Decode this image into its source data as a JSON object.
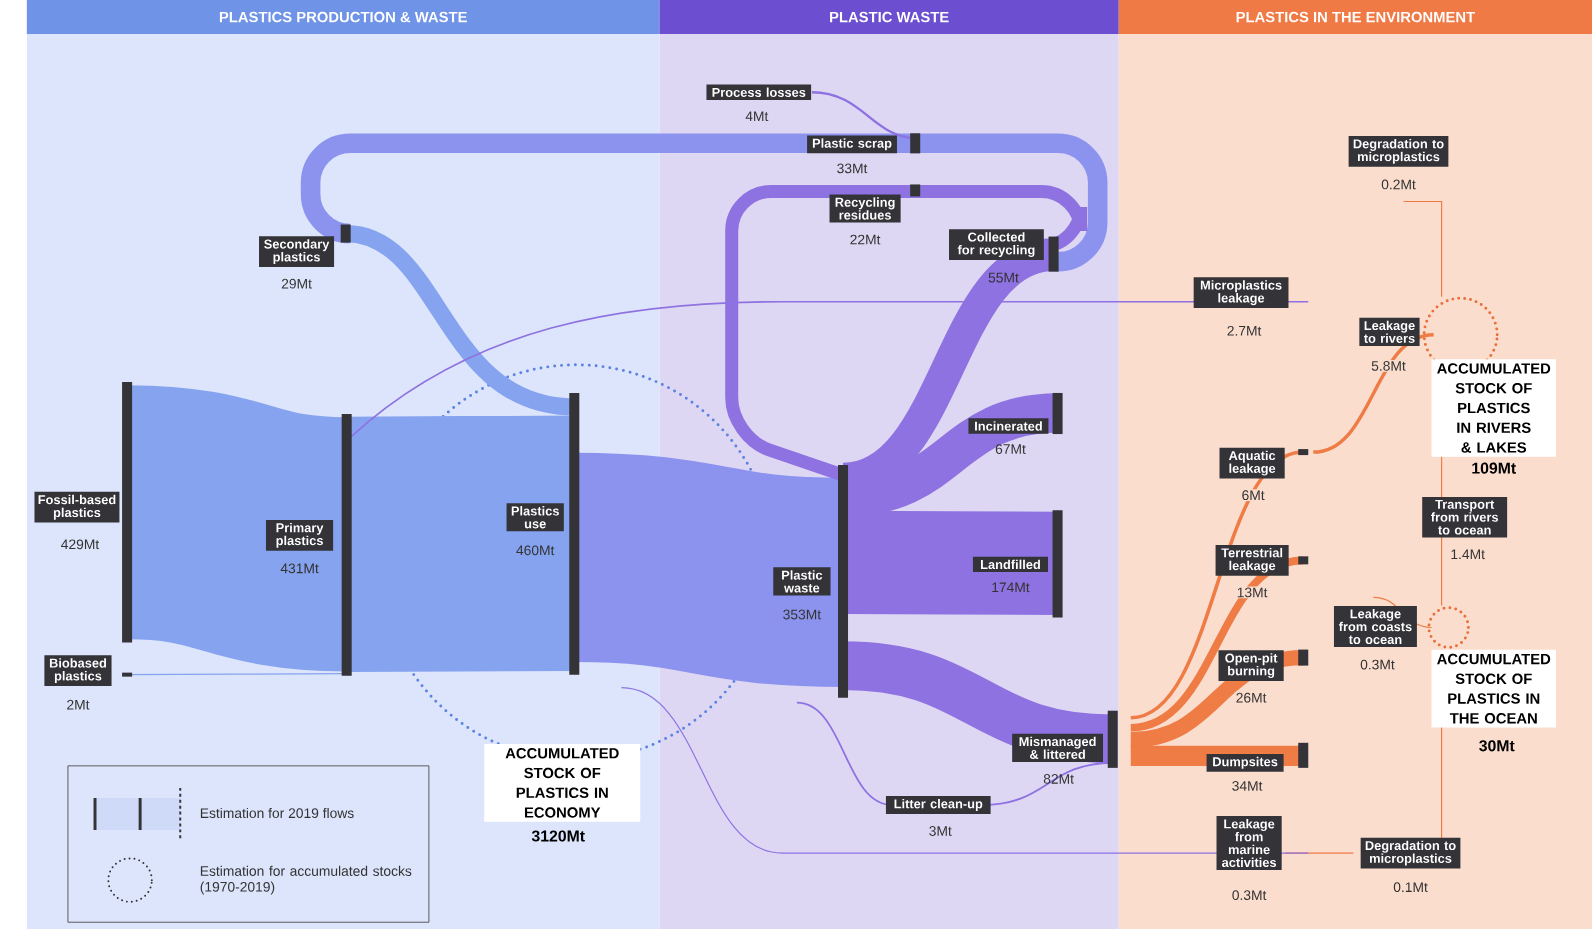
{
  "chart_data": {
    "type": "other",
    "categories": [
      "Fossil-based plastics",
      "Biobased plastics",
      "Primary plastics",
      "Secondary plastics",
      "Plastics use",
      "Process losses",
      "Plastic scrap",
      "Recycling residues",
      "Collected for recycling",
      "Plastic waste",
      "Incinerated",
      "Landfilled",
      "Mismanaged & littered",
      "Litter clean-up",
      "Microplastics leakage",
      "Aquatic leakage",
      "Terrestrial leakage",
      "Open-pit burning",
      "Dumpsites",
      "Leakage from marine activities",
      "Degradation to microplastics",
      "Leakage to rivers",
      "Transport from rivers to ocean",
      "Leakage from coasts to ocean",
      "Degradation to microplastics",
      "ACCUMULATED STOCK OF PLASTICS IN RIVERS & LAKES",
      "ACCUMULATED STOCK OF PLASTICS IN THE OCEAN",
      "ACCUMULATED STOCK OF PLASTICS IN ECONOMY"
    ],
    "values": [
      429,
      2,
      431,
      29,
      460,
      4,
      33,
      22,
      55,
      353,
      67,
      174,
      82,
      3,
      2.7,
      6,
      13,
      26,
      34,
      0.3,
      0.2,
      5.8,
      1.4,
      0.3,
      0.1,
      109,
      30,
      3120
    ],
    "value_labels": [
      "429Mt",
      "2Mt",
      "431Mt",
      "29Mt",
      "460Mt",
      "4Mt",
      "33Mt",
      "22Mt",
      "55Mt",
      "353Mt",
      "67Mt",
      "174Mt",
      "82Mt",
      "3Mt",
      "2.7Mt",
      "6Mt",
      "13Mt",
      "26Mt",
      "34Mt",
      "0.3Mt",
      "0.2Mt",
      "5.8Mt",
      "1.4Mt",
      "0.3Mt",
      "0.1Mt",
      "109Mt",
      "30Mt",
      "3120Mt"
    ],
    "annotations": [
      "PLASTICS PRODUCTION & WASTE",
      "PLASTIC WASTE",
      "PLASTICS IN THE ENVIRONMENT",
      "Estimation for 2019 flows",
      "Estimation for accumulated stocks (1970-2019)"
    ]
  }
}
